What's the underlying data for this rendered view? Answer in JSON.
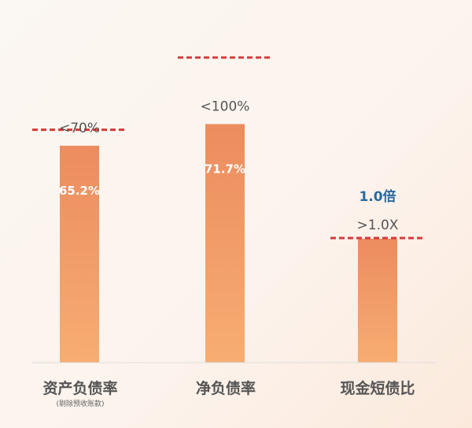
{
  "chart_data": {
    "type": "bar",
    "categories": [
      "资产负债率",
      "净负债率",
      "现金短债比"
    ],
    "category_note": "(剔除预收账款)",
    "values": [
      65.2,
      71.7,
      1.0
    ],
    "value_labels": [
      "65.2%",
      "71.7%",
      "1.0倍"
    ],
    "thresholds": [
      70,
      100,
      1.0
    ],
    "threshold_labels": [
      "<70%",
      "<100%",
      ">1.0X"
    ],
    "units": [
      "%",
      "%",
      "倍"
    ],
    "grid": false,
    "colors": {
      "bar_top": "#ec8c5f",
      "bar_bottom": "#f7ad72",
      "threshold": "#d43a3a",
      "value_text_blue": "#2a6aa0",
      "label_text": "#555555"
    }
  }
}
